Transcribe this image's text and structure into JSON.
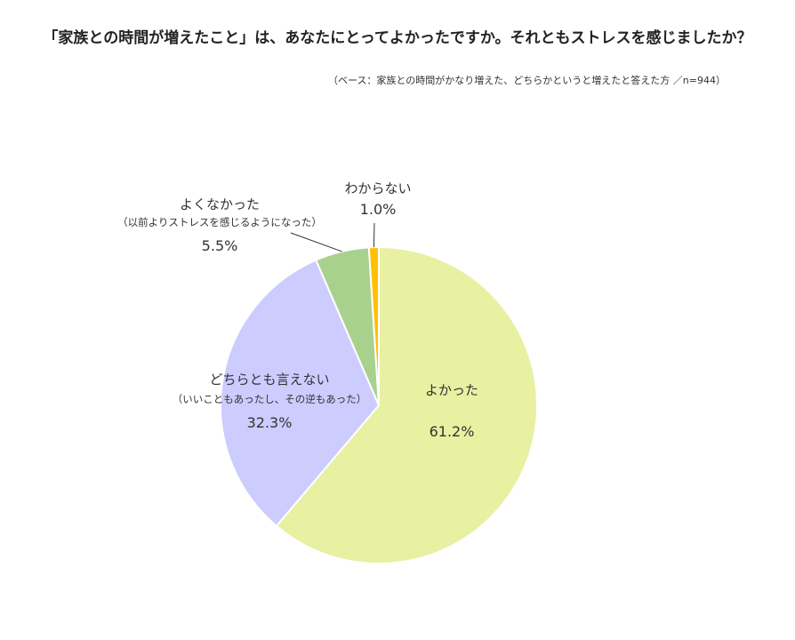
{
  "header": {
    "title": "「家族との時間が増えたこと」は、あなたにとってよかったですか。それともストレスを感じましたか？",
    "subtitle": "（ベース：家族との時間がかなり増えた、どちらかというと増えたと答えた方 ／n=944）"
  },
  "chart_data": {
    "type": "pie",
    "title": "「家族との時間が増えたこと」は、あなたにとってよかったですか。それともストレスを感じましたか？",
    "subtitle": "（ベース：家族との時間がかなり増えた、どちらかというと増えたと答えた方 ／n=944）",
    "start_angle": "12 o'clock, clockwise",
    "legend": "none (labels beside slices)",
    "slices": [
      {
        "label": "よかった",
        "note": "",
        "value": 61.2,
        "value_label": "61.2%",
        "color": "#e8f0a2"
      },
      {
        "label": "どちらとも言えない",
        "note": "（いいこともあったし、その逆もあった）",
        "value": 32.3,
        "value_label": "32.3%",
        "color": "#ccccff"
      },
      {
        "label": "よくなかった",
        "note": "（以前よりストレスを感じるようになった）",
        "value": 5.5,
        "value_label": "5.5%",
        "color": "#a9d18e"
      },
      {
        "label": "わからない",
        "note": "",
        "value": 1.0,
        "value_label": "1.0%",
        "color": "#ffc000"
      }
    ]
  }
}
